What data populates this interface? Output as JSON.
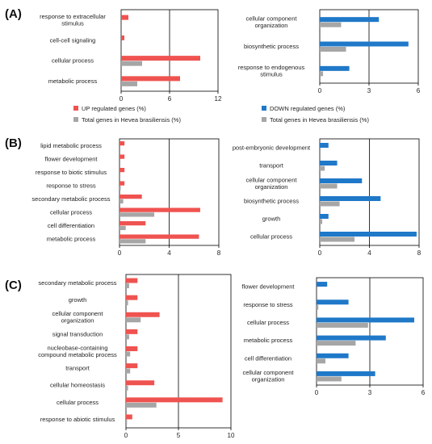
{
  "figure": {
    "panel_labels": [
      "(A)",
      "(B)",
      "(C)"
    ],
    "colors": {
      "up": "#ef5350",
      "down": "#1f78c8",
      "total": "#a6a6a6",
      "axis": "#000000"
    }
  },
  "legend": {
    "up_label": "UP regulated genes (%)",
    "down_label": "DOWN regulated genes (%)",
    "total_label": "Total genes in Hevea brasiliensis (%)"
  },
  "chart_data": [
    {
      "id": "A-left",
      "panel": "(A)",
      "type": "bar",
      "orientation": "horizontal",
      "categories": [
        "response to extracellular stimulus",
        "cell-cell signaling",
        "cellular process",
        "metabolic process"
      ],
      "series": [
        {
          "name": "UP regulated genes (%)",
          "values": [
            0.9,
            0.4,
            9.8,
            7.3
          ]
        },
        {
          "name": "Total genes in Hevea brasiliensis (%)",
          "values": [
            0,
            0,
            2.6,
            2.0
          ]
        }
      ],
      "xlim": [
        0,
        12
      ],
      "ticks": [
        0,
        6,
        12
      ],
      "refline": 6
    },
    {
      "id": "A-right",
      "panel": "(A)",
      "type": "bar",
      "orientation": "horizontal",
      "categories": [
        "cellular component organization",
        "biosynthetic process",
        "response to endogenous stimulus"
      ],
      "series": [
        {
          "name": "DOWN regulated genes (%)",
          "values": [
            3.6,
            5.4,
            1.8
          ]
        },
        {
          "name": "Total genes in Hevea brasiliensis (%)",
          "values": [
            1.3,
            1.6,
            0.2
          ]
        }
      ],
      "xlim": [
        0,
        6
      ],
      "ticks": [
        0,
        3,
        6
      ],
      "refline": 3
    },
    {
      "id": "B-left",
      "panel": "(B)",
      "type": "bar",
      "orientation": "horizontal",
      "categories": [
        "lipid metabolic process",
        "flower development",
        "response to biotic stimulus",
        "response to stress",
        "secondary metabolic process",
        "cellular process",
        "cell differentiation",
        "metabolic process"
      ],
      "series": [
        {
          "name": "UP regulated genes (%)",
          "values": [
            0.4,
            0.4,
            0.4,
            0.4,
            1.8,
            6.5,
            2.1,
            6.4
          ]
        },
        {
          "name": "Total genes in Hevea brasiliensis (%)",
          "values": [
            0,
            0,
            0,
            0.1,
            0.3,
            2.8,
            0.5,
            2.1
          ]
        }
      ],
      "xlim": [
        0,
        8
      ],
      "ticks": [
        0,
        4,
        8
      ],
      "refline": 4
    },
    {
      "id": "B-right",
      "panel": "(B)",
      "type": "bar",
      "orientation": "horizontal",
      "categories": [
        "post-embryonic development",
        "transport",
        "cellular component organization",
        "biosynthetic process",
        "growth",
        "cellular process"
      ],
      "series": [
        {
          "name": "DOWN regulated genes (%)",
          "values": [
            0.7,
            1.4,
            3.4,
            4.9,
            0.7,
            7.8
          ]
        },
        {
          "name": "Total genes in Hevea brasiliensis (%)",
          "values": [
            0,
            0.4,
            1.4,
            1.6,
            0.2,
            2.8
          ]
        }
      ],
      "xlim": [
        0,
        8
      ],
      "ticks": [
        0,
        4,
        8
      ],
      "refline": 4
    },
    {
      "id": "C-left",
      "panel": "(C)",
      "type": "bar",
      "orientation": "horizontal",
      "categories": [
        "secondary metabolic process",
        "growth",
        "cellular component organization",
        "signal transduction",
        "nucleobase-containing compound metabolic process",
        "transport",
        "cellular homeostasis",
        "cellular process",
        "response to abiotic stimulus"
      ],
      "series": [
        {
          "name": "UP regulated genes (%)",
          "values": [
            1.1,
            1.1,
            3.2,
            1.1,
            1.1,
            1.1,
            2.7,
            9.2,
            0.6
          ]
        },
        {
          "name": "Total genes in Hevea brasiliensis (%)",
          "values": [
            0.3,
            0.2,
            1.4,
            0.3,
            0.4,
            0.4,
            0.2,
            2.9,
            0.1
          ]
        }
      ],
      "xlim": [
        0,
        10
      ],
      "ticks": [
        0,
        5,
        10
      ],
      "refline": 5
    },
    {
      "id": "C-right",
      "panel": "(C)",
      "type": "bar",
      "orientation": "horizontal",
      "categories": [
        "flower development",
        "response to stress",
        "cellular process",
        "metabolic process",
        "cell differentiation",
        "cellular component organization"
      ],
      "series": [
        {
          "name": "DOWN regulated genes (%)",
          "values": [
            0.6,
            1.8,
            5.5,
            3.9,
            1.8,
            3.3
          ]
        },
        {
          "name": "Total genes in Hevea brasiliensis (%)",
          "values": [
            0,
            0.1,
            2.9,
            2.2,
            0.5,
            1.4
          ]
        }
      ],
      "xlim": [
        0,
        6
      ],
      "ticks": [
        0,
        3,
        6
      ],
      "refline": 3
    }
  ]
}
